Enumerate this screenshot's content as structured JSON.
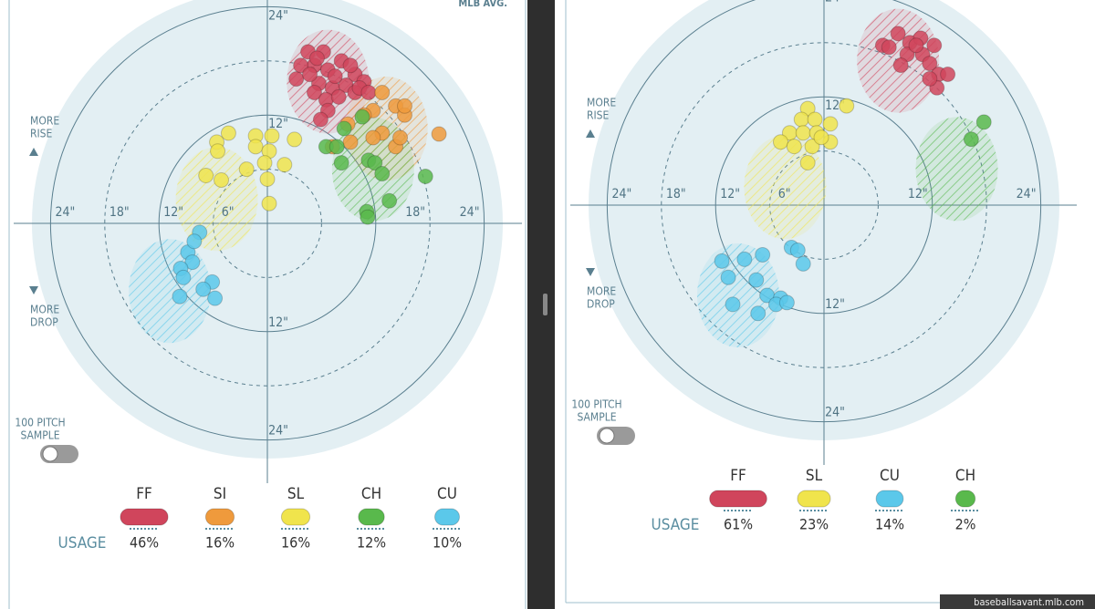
{
  "chart_data": [
    {
      "type": "scatter",
      "note": "MLB AVG.",
      "rise_label": [
        "MORE",
        "RISE"
      ],
      "drop_label": [
        "MORE",
        "DROP"
      ],
      "sample_label": [
        "100 PITCH",
        "SAMPLE"
      ],
      "usage_title": "USAGE",
      "rings": [
        {
          "value": 6,
          "style": "dashed"
        },
        {
          "value": 12,
          "style": "solid"
        },
        {
          "value": 18,
          "style": "dashed"
        },
        {
          "value": 24,
          "style": "solid"
        }
      ],
      "ring_labels": [
        {
          "value": 24,
          "label": "24\"",
          "side": "top"
        },
        {
          "value": 12,
          "label": "12\"",
          "side": "top"
        },
        {
          "value": 12,
          "label": "12\"",
          "side": "bottom"
        },
        {
          "value": 24,
          "label": "24\"",
          "side": "bottom"
        },
        {
          "value": 24,
          "label": "24\"",
          "side": "left"
        },
        {
          "value": 18,
          "label": "18\"",
          "side": "left"
        },
        {
          "value": 12,
          "label": "12\"",
          "side": "left"
        },
        {
          "value": 6,
          "label": "6\"",
          "side": "left"
        },
        {
          "value": 18,
          "label": "18\"",
          "side": "right"
        },
        {
          "value": 24,
          "label": "24\"",
          "side": "right"
        }
      ],
      "series": [
        {
          "name": "FF",
          "color": "#d0455c",
          "usage": 46,
          "usage_label": "46%",
          "mlb_avg": [
            6.7,
            15.7
          ],
          "x": [
            4.5,
            6.2,
            3.2,
            5.2,
            6.7,
            8.2,
            9.7,
            10.7,
            5.7,
            7.2,
            8.7,
            5.2,
            6.5,
            7.9,
            9.7,
            3.7,
            4.7,
            9.2,
            10.2,
            6.7,
            5.9,
            11.2,
            7.5,
            5.5
          ],
          "y": [
            19,
            19,
            16,
            17.5,
            17,
            18,
            16.5,
            15.7,
            15.5,
            15,
            15.3,
            14.5,
            13.7,
            14,
            14.5,
            17.5,
            16.5,
            17.5,
            15,
            12.5,
            11.5,
            14.5,
            16.3,
            18.3
          ]
        },
        {
          "name": "SI",
          "color": "#ef9a3c",
          "usage": 16,
          "usage_label": "16%",
          "mlb_avg": [
            13.2,
            10.5
          ],
          "x": [
            12.7,
            14.2,
            15.2,
            15.2,
            11.7,
            10.7,
            9.2,
            12.7,
            14.2,
            14.7,
            19,
            8.9,
            11.7,
            7.2
          ],
          "y": [
            14.5,
            13,
            12,
            13,
            12.5,
            12,
            9,
            10,
            8.5,
            9.5,
            9.9,
            11,
            9.5,
            8.5
          ]
        },
        {
          "name": "SL",
          "color": "#f0e44c",
          "usage": 16,
          "usage_label": "16%",
          "mlb_avg": [
            -5.6,
            2.7
          ],
          "x": [
            -4.3,
            -5.6,
            -5.5,
            -1.3,
            0.5,
            3,
            -1.3,
            0.2,
            -2.3,
            -0.3,
            1.9,
            -6.8,
            -5.1,
            0,
            0.2
          ],
          "y": [
            10,
            9,
            8,
            9.7,
            9.7,
            9.3,
            8.5,
            8,
            6,
            6.7,
            6.5,
            5.3,
            4.8,
            4.9,
            2.2
          ]
        },
        {
          "name": "CH",
          "color": "#59b94c",
          "usage": 12,
          "usage_label": "12%",
          "mlb_avg": [
            11.7,
            6
          ],
          "x": [
            10.5,
            8.5,
            6.5,
            7.7,
            8.2,
            11.2,
            11.9,
            12.7,
            17.5,
            13.5,
            11,
            11.1
          ],
          "y": [
            11.8,
            10.5,
            8.5,
            8.5,
            6.7,
            7,
            6.7,
            5.5,
            5.2,
            2.5,
            1.3,
            0.7
          ]
        },
        {
          "name": "CU",
          "color": "#5bc8ea",
          "usage": 10,
          "usage_label": "10%",
          "mlb_avg": [
            -10.8,
            -7.5
          ],
          "x": [
            -7.5,
            -8.8,
            -8.3,
            -9.6,
            -9.3,
            -6.1,
            -7.1,
            -9.7,
            -5.8,
            -8.1
          ],
          "y": [
            -1,
            -3.2,
            -4.3,
            -5,
            -6,
            -6.5,
            -7.3,
            -8.1,
            -8.3,
            -2
          ]
        }
      ]
    },
    {
      "type": "scatter",
      "rise_label": [
        "MORE",
        "RISE"
      ],
      "drop_label": [
        "MORE",
        "DROP"
      ],
      "sample_label": [
        "100 PITCH",
        "SAMPLE"
      ],
      "usage_title": "USAGE",
      "rings": [
        {
          "value": 6,
          "style": "dashed"
        },
        {
          "value": 12,
          "style": "solid"
        },
        {
          "value": 18,
          "style": "dashed"
        },
        {
          "value": 24,
          "style": "solid"
        }
      ],
      "ring_labels": [
        {
          "value": 24,
          "label": "24\"",
          "side": "top"
        },
        {
          "value": 12,
          "label": "12\"",
          "side": "top"
        },
        {
          "value": 12,
          "label": "12\"",
          "side": "bottom"
        },
        {
          "value": 24,
          "label": "24\"",
          "side": "bottom"
        },
        {
          "value": 24,
          "label": "24\"",
          "side": "left"
        },
        {
          "value": 18,
          "label": "18\"",
          "side": "left"
        },
        {
          "value": 12,
          "label": "12\"",
          "side": "left"
        },
        {
          "value": 6,
          "label": "6\"",
          "side": "left"
        },
        {
          "value": 12,
          "label": "12\"",
          "side": "right"
        },
        {
          "value": 24,
          "label": "24\"",
          "side": "right"
        }
      ],
      "series": [
        {
          "name": "FF",
          "color": "#d0455c",
          "usage": 61,
          "usage_label": "61%",
          "mlb_avg": [
            8.2,
            16
          ],
          "x": [
            6.5,
            8.2,
            9.5,
            10.7,
            12.2,
            9.2,
            10.9,
            11.7,
            12.7,
            13.7,
            12.5,
            11.7,
            8.5,
            7.2,
            10.2
          ],
          "y": [
            17.7,
            19,
            18,
            18.5,
            17.7,
            16.7,
            16.7,
            15.7,
            14.5,
            14.5,
            13,
            14,
            15.5,
            17.5,
            17.7
          ]
        },
        {
          "name": "SL",
          "color": "#f0e44c",
          "usage": 23,
          "usage_label": "23%",
          "mlb_avg": [
            -4.3,
            2
          ],
          "x": [
            -1.8,
            -2.5,
            -1,
            0.7,
            2.5,
            -3.8,
            -2.3,
            -0.8,
            0.7,
            -4.8,
            -3.3,
            -1.3,
            -1.8,
            -0.3
          ],
          "y": [
            10.7,
            9.5,
            9.5,
            9,
            11,
            8,
            8,
            8,
            7,
            7,
            6.5,
            6.5,
            4.7,
            7.5
          ]
        },
        {
          "name": "CU",
          "color": "#5bc8ea",
          "usage": 14,
          "usage_label": "14%",
          "mlb_avg": [
            -9.5,
            -10
          ],
          "x": [
            -11.3,
            -8.8,
            -6.8,
            -3.6,
            -2.9,
            -2.3,
            -10.6,
            -7.5,
            -10.1,
            -6.3,
            -4.8,
            -7.3,
            -5.3,
            -4.1
          ],
          "y": [
            -6.2,
            -6,
            -5.5,
            -4.7,
            -5,
            -6.5,
            -8,
            -8.3,
            -11,
            -10,
            -10.3,
            -12,
            -11,
            -10.8
          ]
        },
        {
          "name": "CH",
          "color": "#59b94c",
          "usage": 2,
          "usage_label": "2%",
          "mlb_avg": [
            14.7,
            4
          ],
          "x": [
            17.7,
            16.3
          ],
          "y": [
            9.2,
            7.3
          ]
        }
      ]
    }
  ],
  "footer": "baseballsavant.mlb.com"
}
